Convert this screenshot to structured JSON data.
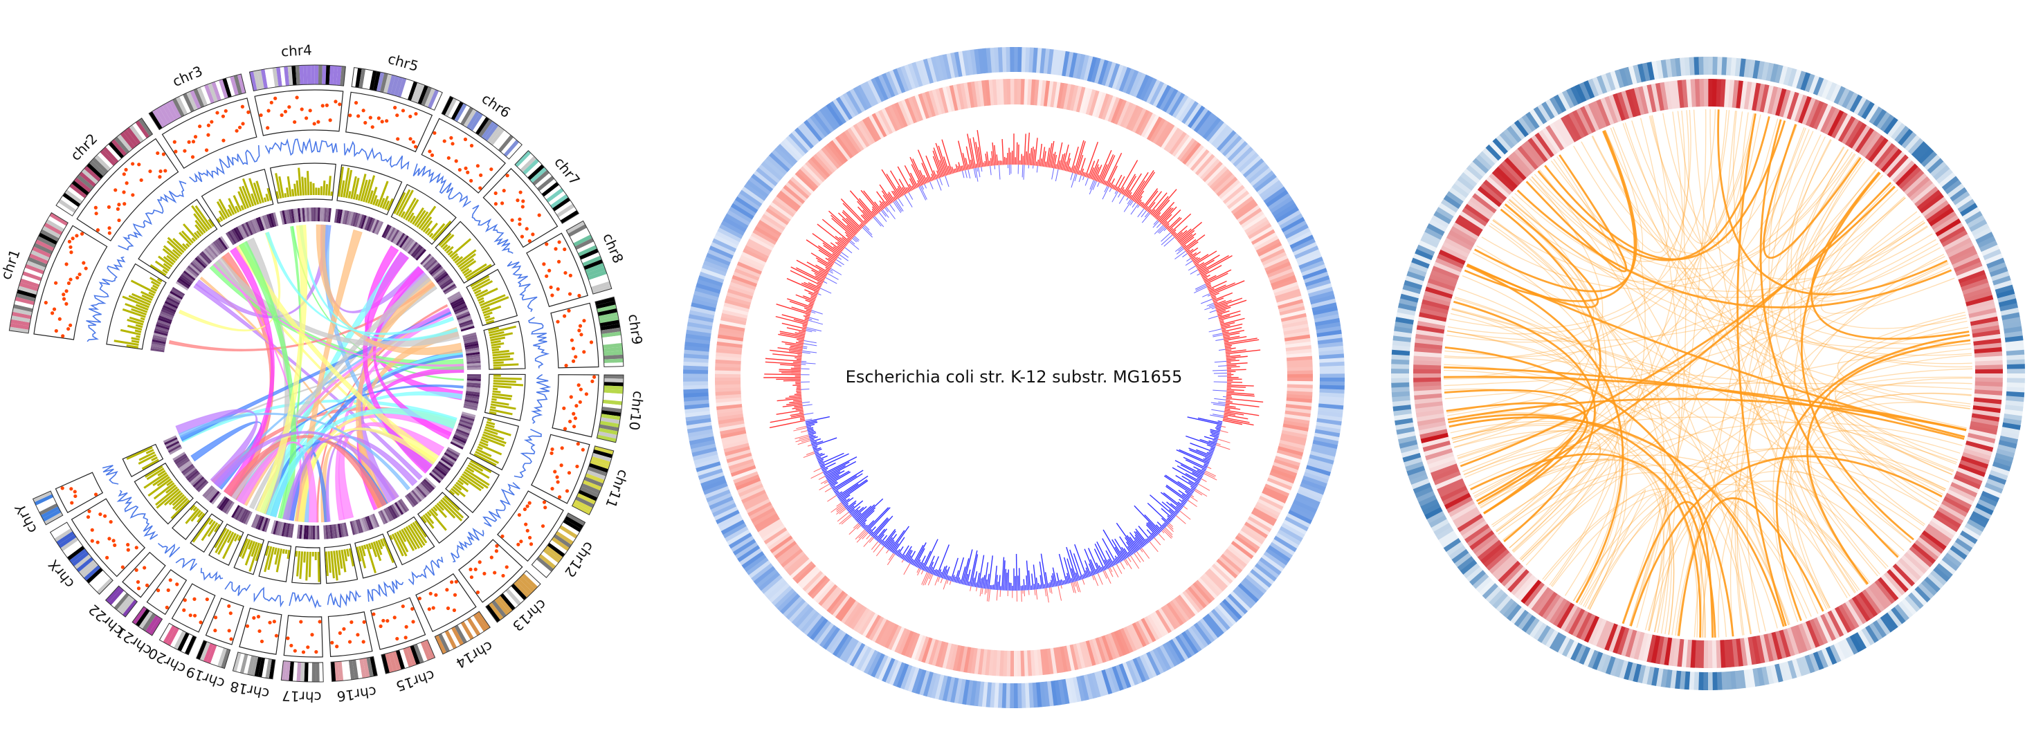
{
  "panels": [
    {
      "id": "human-genome-circos",
      "chromosomes": [
        "chr1",
        "chr2",
        "chr3",
        "chr4",
        "chr5",
        "chr6",
        "chr7",
        "chr8",
        "chr9",
        "chr10",
        "chr11",
        "chr12",
        "chr13",
        "chr14",
        "chr15",
        "chr16",
        "chr17",
        "chr18",
        "chr19",
        "chr20",
        "chr21",
        "chr22",
        "chrX",
        "chrY"
      ],
      "colors": {
        "scatter": "#ff4500",
        "line": "#4a78e8",
        "bar": "#b5b500",
        "heatmap": "#3d0a4f",
        "link_palette": [
          "#ff7f7f",
          "#7fbfff",
          "#ffff7f",
          "#ff7fff",
          "#7fff7f",
          "#bf7fff",
          "#7fffff",
          "#ffbf7f",
          "#4a86ff",
          "#ff3fff",
          "#c8c8c8"
        ]
      }
    },
    {
      "id": "ecoli-circos",
      "title": "Escherichia coli str. K-12 substr. MG1655",
      "colors": {
        "outer_track": "#5b8fe0",
        "middle_track": "#f7776a",
        "gc_skew_positive": "#ff0000",
        "gc_skew_negative": "#0000ff"
      }
    },
    {
      "id": "heatmap-link-circos",
      "colors": {
        "outer_heatmap": "#2a6fb0",
        "inner_heatmap": "#c8141c",
        "links": "#ff9a1a"
      }
    }
  ]
}
